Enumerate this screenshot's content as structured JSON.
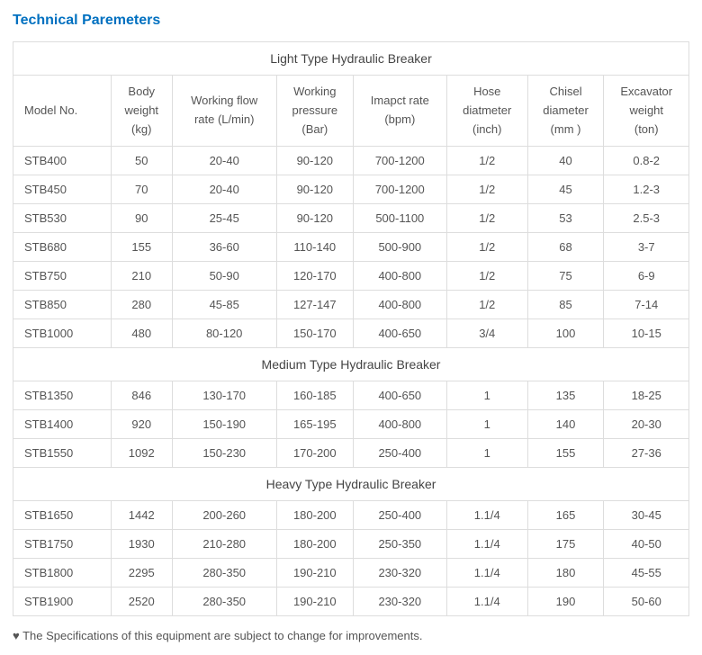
{
  "title": "Technical Paremeters",
  "columns": [
    {
      "label": "Model No."
    },
    {
      "label": "Body weight (kg)"
    },
    {
      "label": "Working flow rate (L/min)"
    },
    {
      "label": "Working pressure (Bar)"
    },
    {
      "label": "Imapct rate (bpm)"
    },
    {
      "label": "Hose diatmeter (inch)"
    },
    {
      "label": "Chisel diameter (mm )"
    },
    {
      "label": "Excavator weight (ton)"
    }
  ],
  "sections": [
    {
      "header": "Light Type Hydraulic Breaker",
      "rows": [
        [
          "STB400",
          "50",
          "20-40",
          "90-120",
          "700-1200",
          "1/2",
          "40",
          "0.8-2"
        ],
        [
          "STB450",
          "70",
          "20-40",
          "90-120",
          "700-1200",
          "1/2",
          "45",
          "1.2-3"
        ],
        [
          "STB530",
          "90",
          "25-45",
          "90-120",
          "500-1100",
          "1/2",
          "53",
          "2.5-3"
        ],
        [
          "STB680",
          "155",
          "36-60",
          "110-140",
          "500-900",
          "1/2",
          "68",
          "3-7"
        ],
        [
          "STB750",
          "210",
          "50-90",
          "120-170",
          "400-800",
          "1/2",
          "75",
          "6-9"
        ],
        [
          "STB850",
          "280",
          "45-85",
          "127-147",
          "400-800",
          "1/2",
          "85",
          "7-14"
        ],
        [
          "STB1000",
          "480",
          "80-120",
          "150-170",
          "400-650",
          "3/4",
          "100",
          "10-15"
        ]
      ]
    },
    {
      "header": "Medium Type Hydraulic Breaker",
      "rows": [
        [
          "STB1350",
          "846",
          "130-170",
          "160-185",
          "400-650",
          "1",
          "135",
          "18-25"
        ],
        [
          "STB1400",
          "920",
          "150-190",
          "165-195",
          "400-800",
          "1",
          "140",
          "20-30"
        ],
        [
          "STB1550",
          "1092",
          "150-230",
          "170-200",
          "250-400",
          "1",
          "155",
          "27-36"
        ]
      ]
    },
    {
      "header": "Heavy Type Hydraulic Breaker",
      "rows": [
        [
          "STB1650",
          "1442",
          "200-260",
          "180-200",
          "250-400",
          "1.1/4",
          "165",
          "30-45"
        ],
        [
          "STB1750",
          "1930",
          "210-280",
          "180-200",
          "250-350",
          "1.1/4",
          "175",
          "40-50"
        ],
        [
          "STB1800",
          "2295",
          "280-350",
          "190-210",
          "230-320",
          "1.1/4",
          "180",
          "45-55"
        ],
        [
          "STB1900",
          "2520",
          "280-350",
          "190-210",
          "230-320",
          "1.1/4",
          "190",
          "50-60"
        ]
      ]
    }
  ],
  "footnote": "♥ The Specifications of this equipment are subject to change for improvements.",
  "style": {
    "title_color": "#0070c0",
    "border_color": "#dddddd",
    "text_color": "#555555",
    "background_color": "#ffffff",
    "font_size_body": 13,
    "font_size_title": 16
  }
}
